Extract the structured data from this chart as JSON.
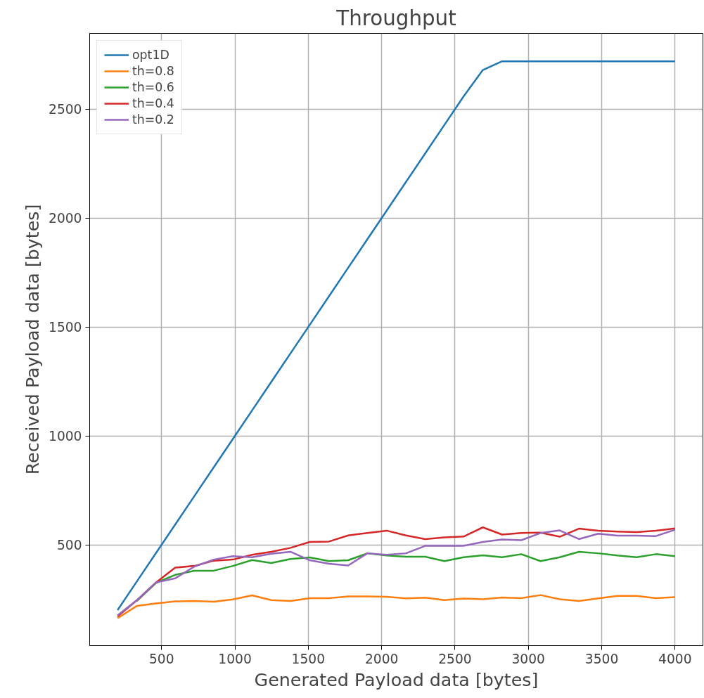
{
  "chart_data": {
    "type": "line",
    "title": "Throughput",
    "xlabel": "Generated Payload data [bytes]",
    "ylabel": "Received Payload data [bytes]",
    "x": [
      200,
      331,
      462,
      593,
      724,
      855,
      986,
      1117,
      1248,
      1379,
      1510,
      1641,
      1772,
      1903,
      2034,
      2166,
      2297,
      2428,
      2559,
      2690,
      2821,
      2952,
      3083,
      3214,
      3345,
      3476,
      3607,
      3738,
      3869,
      4000
    ],
    "series": [
      {
        "name": "opt1D",
        "color": "#1f77b4",
        "values": [
          200,
          331,
          462,
          593,
          724,
          855,
          986,
          1117,
          1248,
          1379,
          1510,
          1641,
          1772,
          1903,
          2034,
          2166,
          2297,
          2428,
          2559,
          2680,
          2720,
          2720,
          2720,
          2720,
          2720,
          2720,
          2720,
          2720,
          2720,
          2720
        ]
      },
      {
        "name": "th=0.8",
        "color": "#ff7f0e",
        "values": [
          163,
          219,
          231,
          240,
          242,
          239,
          249,
          268,
          246,
          242,
          255,
          255,
          263,
          263,
          261,
          254,
          257,
          246,
          253,
          250,
          258,
          255,
          269,
          250,
          242,
          254,
          265,
          265,
          255,
          260
        ]
      },
      {
        "name": "th=0.6",
        "color": "#2ca02c",
        "values": [
          null,
          242,
          325,
          362,
          381,
          381,
          403,
          430,
          416,
          435,
          442,
          425,
          429,
          461,
          451,
          445,
          445,
          425,
          443,
          452,
          443,
          457,
          425,
          443,
          468,
          461,
          451,
          443,
          457,
          448
        ]
      },
      {
        "name": "th=0.4",
        "color": "#d62728",
        "values": [
          171,
          245,
          327,
          395,
          403,
          427,
          432,
          454,
          468,
          486,
          513,
          515,
          543,
          554,
          565,
          543,
          526,
          534,
          538,
          580,
          547,
          554,
          556,
          537,
          574,
          565,
          561,
          558,
          565,
          575
        ]
      },
      {
        "name": "th=0.2",
        "color": "#9467bd",
        "values": [
          176,
          245,
          327,
          346,
          400,
          432,
          448,
          443,
          459,
          468,
          429,
          413,
          405,
          461,
          454,
          461,
          495,
          495,
          495,
          513,
          524,
          521,
          554,
          566,
          526,
          551,
          542,
          542,
          540,
          569
        ]
      }
    ],
    "xlim": [
      10,
      4190
    ],
    "ylim": [
      37,
      2848
    ],
    "xticks": [
      500,
      1000,
      1500,
      2000,
      2500,
      3000,
      3500,
      4000
    ],
    "yticks": [
      500,
      1000,
      1500,
      2000,
      2500
    ],
    "grid": true,
    "legend": "top left",
    "marker": "none",
    "line_style": "solid"
  }
}
